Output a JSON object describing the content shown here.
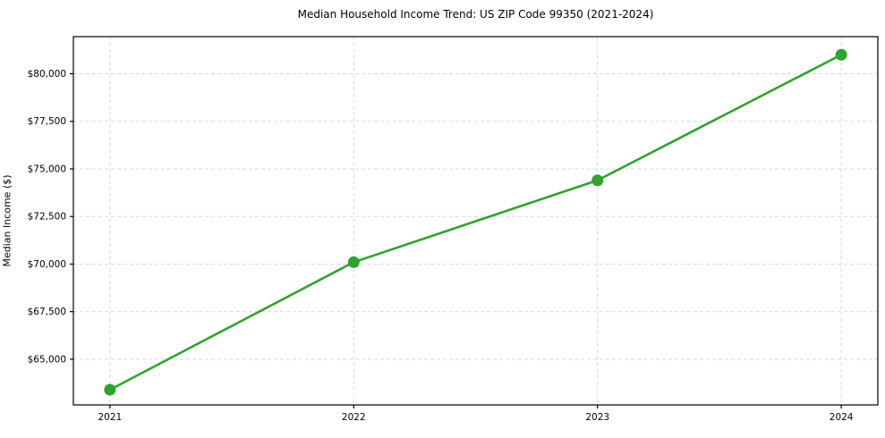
{
  "chart_data": {
    "type": "line",
    "title": "Median Household Income Trend: US ZIP Code 99350 (2021-2024)",
    "xlabel": "",
    "ylabel": "Median Income ($)",
    "categories": [
      "2021",
      "2022",
      "2023",
      "2024"
    ],
    "series": [
      {
        "name": "Median Household Income",
        "values": [
          63400,
          70100,
          74400,
          81000
        ]
      }
    ],
    "yticks": [
      65000,
      67500,
      70000,
      72500,
      75000,
      77500,
      80000
    ],
    "ytick_labels": [
      "$65,000",
      "$67,500",
      "$70,000",
      "$72,500",
      "$75,000",
      "$77,500",
      "$80,000"
    ],
    "ylim": [
      62600,
      81950
    ],
    "x_margin": 0.15,
    "grid": true,
    "legend_position": "none",
    "colors": {
      "line": "#2fa32f",
      "marker": "#2fa32f",
      "gridline": "#d9d9d9",
      "spine": "#000000",
      "tick": "#000000",
      "text": "#000000",
      "background": "#ffffff"
    }
  }
}
